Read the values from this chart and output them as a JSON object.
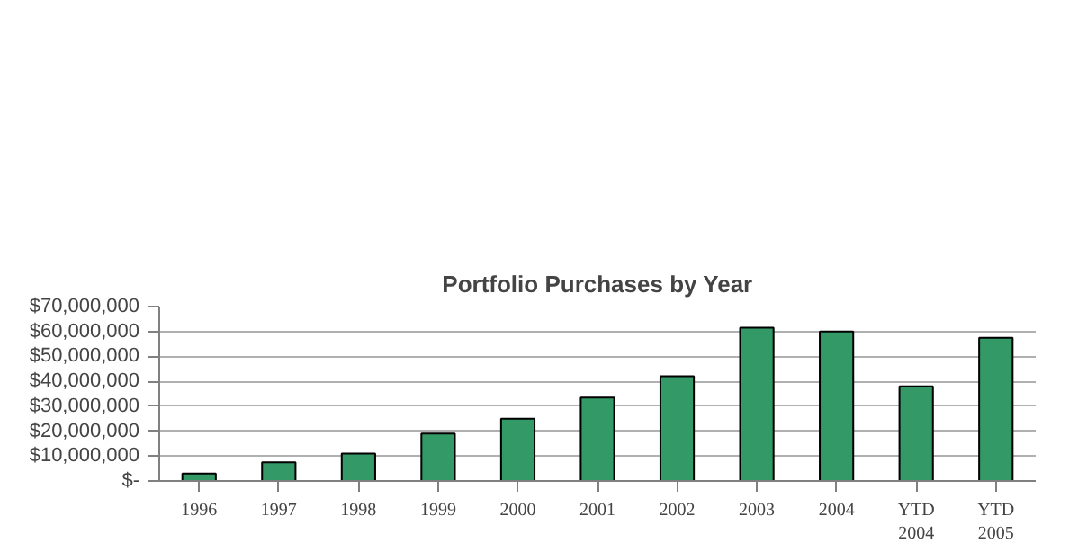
{
  "chart_data": {
    "type": "bar",
    "title": "Portfolio Purchases by Year",
    "categories": [
      "1996",
      "1997",
      "1998",
      "1999",
      "2000",
      "2001",
      "2002",
      "2003",
      "2004",
      "YTD\n2004",
      "YTD\n2005"
    ],
    "values": [
      3000000,
      7500000,
      11000000,
      19000000,
      25000000,
      33500000,
      42000000,
      61500000,
      60000000,
      38000000,
      57500000
    ],
    "color": "#339966",
    "ylim": [
      0,
      70000000
    ],
    "yticks": [
      {
        "value": 0,
        "label": "$-"
      },
      {
        "value": 10000000,
        "label": "$10,000,000"
      },
      {
        "value": 20000000,
        "label": "$20,000,000"
      },
      {
        "value": 30000000,
        "label": "$30,000,000"
      },
      {
        "value": 40000000,
        "label": "$40,000,000"
      },
      {
        "value": 50000000,
        "label": "$50,000,000"
      },
      {
        "value": 60000000,
        "label": "$60,000,000"
      },
      {
        "value": 70000000,
        "label": "$70,000,000"
      }
    ],
    "grid": "y"
  }
}
